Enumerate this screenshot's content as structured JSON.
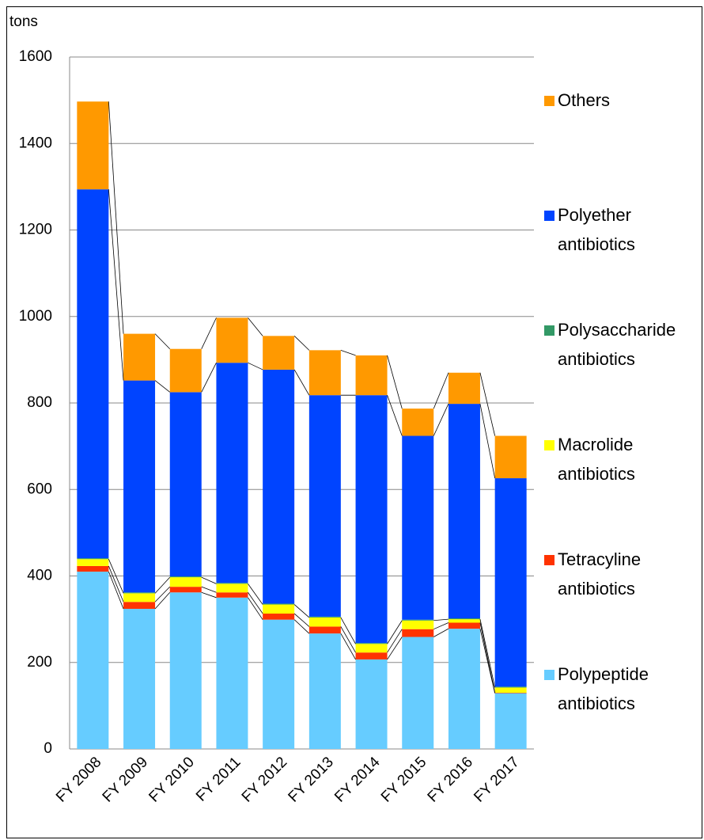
{
  "chart_data": {
    "type": "stacked_bar",
    "y_label": "tons",
    "categories": [
      "FY 2008",
      "FY 2009",
      "FY 2010",
      "FY 2011",
      "FY 2012",
      "FY 2013",
      "FY 2014",
      "FY 2015",
      "FY 2016",
      "FY 2017"
    ],
    "series": [
      {
        "name": "Polypeptide antibiotics",
        "color": "#66ccff",
        "values": [
          410,
          324,
          362,
          350,
          299,
          267,
          207,
          259,
          278,
          129
        ]
      },
      {
        "name": "Tetracyline antibiotics",
        "color": "#ff3300",
        "values": [
          13,
          16,
          13,
          12,
          14,
          16,
          16,
          18,
          14,
          1
        ]
      },
      {
        "name": "Macrolide antibiotics",
        "color": "#ffff00",
        "values": [
          16,
          20,
          22,
          20,
          21,
          21,
          20,
          20,
          8,
          12
        ]
      },
      {
        "name": "Polysaccharide antibiotics",
        "color": "#339966",
        "values": [
          2,
          2,
          2,
          2,
          2,
          2,
          2,
          2,
          2,
          2
        ]
      },
      {
        "name": "Polyether antibiotics",
        "color": "#0044ff",
        "values": [
          853,
          490,
          426,
          509,
          541,
          512,
          573,
          425,
          496,
          482
        ]
      },
      {
        "name": "Others",
        "color": "#ff9900",
        "values": [
          203,
          108,
          100,
          104,
          78,
          104,
          92,
          63,
          72,
          98
        ]
      }
    ],
    "ylim": [
      0,
      1600
    ],
    "yticks": [
      0,
      200,
      400,
      600,
      800,
      1000,
      1200,
      1400,
      1600
    ],
    "grid": true
  }
}
